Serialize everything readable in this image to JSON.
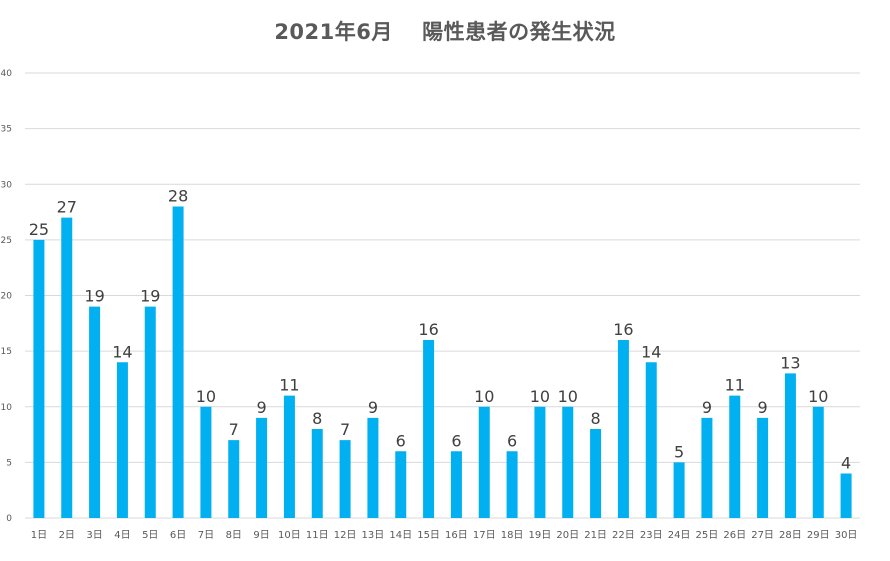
{
  "chart_data": {
    "type": "bar",
    "title": "2021年6月　 陽性患者の発生状況",
    "categories": [
      "1日",
      "2日",
      "3日",
      "4日",
      "5日",
      "6日",
      "7日",
      "8日",
      "9日",
      "10日",
      "11日",
      "12日",
      "13日",
      "14日",
      "15日",
      "16日",
      "17日",
      "18日",
      "19日",
      "20日",
      "21日",
      "22日",
      "23日",
      "24日",
      "25日",
      "26日",
      "27日",
      "28日",
      "29日",
      "30日"
    ],
    "values": [
      25,
      27,
      19,
      14,
      19,
      28,
      10,
      7,
      9,
      11,
      8,
      7,
      9,
      6,
      16,
      6,
      10,
      6,
      10,
      10,
      8,
      16,
      14,
      5,
      9,
      11,
      9,
      13,
      10,
      4
    ],
    "ylim": [
      0,
      40
    ],
    "yticks": [
      0,
      5,
      10,
      15,
      20,
      25,
      30,
      35,
      40
    ],
    "grid": true,
    "legend": "none",
    "bar_color": "#00b0f0"
  }
}
